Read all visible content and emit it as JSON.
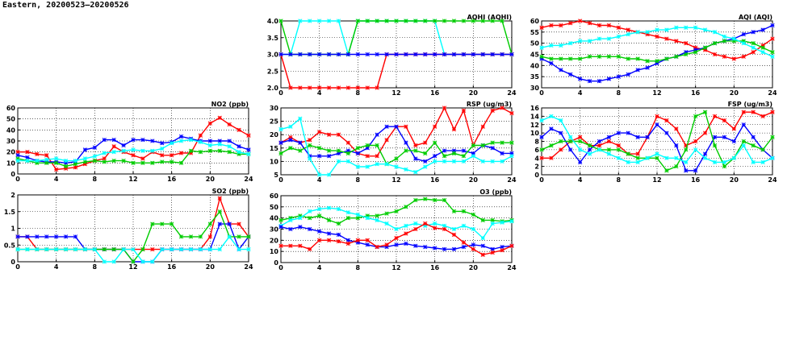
{
  "page": {
    "title": "Eastern, 20200523–20200526"
  },
  "colors": {
    "red": "#ff0000",
    "blue": "#0000ff",
    "green": "#00cc00",
    "cyan": "#00ffff"
  },
  "chart_data": [
    {
      "id": "no2",
      "type": "line",
      "title": "NO2 (ppb)",
      "xlim": [
        0,
        24
      ],
      "ylim": [
        0,
        60
      ],
      "xticks": [
        0,
        4,
        8,
        12,
        16,
        20,
        24
      ],
      "yticks": [
        0,
        10,
        20,
        30,
        40,
        50,
        60
      ],
      "grid": true,
      "x": [
        0,
        1,
        2,
        3,
        4,
        5,
        6,
        7,
        8,
        9,
        10,
        11,
        12,
        13,
        14,
        15,
        16,
        17,
        18,
        19,
        20,
        21,
        22,
        23,
        24
      ],
      "series": [
        {
          "color": "red",
          "values": [
            20,
            20,
            18,
            17,
            4,
            5,
            6,
            9,
            12,
            14,
            25,
            20,
            17,
            14,
            20,
            17,
            17,
            19,
            19,
            35,
            46,
            51,
            45,
            40,
            35
          ]
        },
        {
          "color": "blue",
          "values": [
            17,
            15,
            12,
            11,
            11,
            10,
            11,
            22,
            24,
            31,
            31,
            26,
            31,
            31,
            30,
            28,
            29,
            34,
            32,
            30,
            30,
            30,
            30,
            25,
            22
          ]
        },
        {
          "color": "green",
          "values": [
            14,
            12,
            10,
            10,
            10,
            7,
            9,
            11,
            12,
            11,
            12,
            12,
            10,
            10,
            10,
            11,
            11,
            10,
            21,
            20,
            21,
            21,
            20,
            18,
            18
          ]
        },
        {
          "color": "cyan",
          "values": [
            12,
            12,
            12,
            13,
            14,
            12,
            12,
            14,
            16,
            19,
            20,
            21,
            22,
            21,
            21,
            23,
            28,
            30,
            31,
            29,
            26,
            27,
            25,
            20,
            18
          ]
        }
      ]
    },
    {
      "id": "so2",
      "type": "line",
      "title": "SO2 (ppb)",
      "xlim": [
        0,
        24
      ],
      "ylim": [
        0,
        2
      ],
      "xticks": [
        0,
        4,
        8,
        12,
        16,
        20,
        24
      ],
      "yticks": [
        0,
        0.5,
        1,
        1.5,
        2
      ],
      "grid": true,
      "x": [
        0,
        1,
        2,
        3,
        4,
        5,
        6,
        7,
        8,
        9,
        10,
        11,
        12,
        13,
        14,
        15,
        16,
        17,
        18,
        19,
        20,
        21,
        22,
        23,
        24
      ],
      "series": [
        {
          "color": "red",
          "values": [
            0.75,
            0.75,
            0.37,
            0.37,
            0.37,
            0.37,
            0.37,
            0.37,
            0.37,
            0.37,
            0.37,
            0.37,
            0.37,
            0.37,
            0.37,
            0.37,
            0.37,
            0.37,
            0.37,
            0.37,
            0.75,
            1.9,
            1.13,
            1.13,
            0.75
          ]
        },
        {
          "color": "blue",
          "values": [
            0.75,
            0.75,
            0.75,
            0.75,
            0.75,
            0.75,
            0.75,
            0.37,
            0.37,
            0.37,
            0.37,
            0.37,
            0,
            0,
            0,
            0.37,
            0.37,
            0.37,
            0.37,
            0.37,
            0.37,
            1.13,
            1.13,
            0.37,
            0.75
          ]
        },
        {
          "color": "green",
          "values": [
            0.37,
            0.37,
            0.37,
            0.37,
            0.37,
            0.37,
            0.37,
            0.37,
            0.37,
            0.37,
            0.37,
            0.37,
            0,
            0.37,
            1.13,
            1.13,
            1.13,
            0.75,
            0.75,
            0.75,
            1.13,
            1.5,
            0.75,
            0.75,
            0.75
          ]
        },
        {
          "color": "cyan",
          "values": [
            0.37,
            0.37,
            0.37,
            0.37,
            0.37,
            0.37,
            0.37,
            0.37,
            0.37,
            0,
            0,
            0.37,
            0.37,
            0,
            0,
            0.37,
            0.37,
            0.37,
            0.37,
            0.37,
            0.37,
            0.37,
            0.75,
            0.37,
            0.37
          ]
        }
      ]
    },
    {
      "id": "aqhi",
      "type": "line",
      "title": "AQHI (AQHI)",
      "xlim": [
        0,
        24
      ],
      "ylim": [
        2,
        4
      ],
      "xticks": [
        0,
        4,
        8,
        12,
        16,
        20,
        24
      ],
      "yticks": [
        2,
        2.5,
        3,
        3.5,
        4
      ],
      "ytick_labels": [
        "2.0",
        "2.5",
        "3.0",
        "3.5",
        "4.0"
      ],
      "grid": true,
      "x": [
        0,
        1,
        2,
        3,
        4,
        5,
        6,
        7,
        8,
        9,
        10,
        11,
        12,
        13,
        14,
        15,
        16,
        17,
        18,
        19,
        20,
        21,
        22,
        23,
        24
      ],
      "series": [
        {
          "color": "cyan",
          "values": [
            3,
            3,
            4,
            4,
            4,
            4,
            4,
            3,
            4,
            4,
            4,
            4,
            4,
            4,
            4,
            4,
            4,
            3,
            3,
            3,
            3,
            3,
            3,
            3,
            3
          ]
        },
        {
          "color": "green",
          "values": [
            4,
            3,
            3,
            3,
            3,
            3,
            3,
            3,
            4,
            4,
            4,
            4,
            4,
            4,
            4,
            4,
            4,
            4,
            4,
            4,
            4,
            4,
            4,
            4,
            3
          ]
        },
        {
          "color": "red",
          "values": [
            3,
            2,
            2,
            2,
            2,
            2,
            2,
            2,
            2,
            2,
            2,
            3,
            3,
            3,
            3,
            3,
            3,
            3,
            3,
            3,
            3,
            3,
            3,
            3,
            3
          ]
        },
        {
          "color": "blue",
          "values": [
            3,
            3,
            3,
            3,
            3,
            3,
            3,
            3,
            3,
            3,
            3,
            3,
            3,
            3,
            3,
            3,
            3,
            3,
            3,
            3,
            3,
            3,
            3,
            3,
            3
          ]
        }
      ]
    },
    {
      "id": "rsp",
      "type": "line",
      "title": "RSP (ug/m3)",
      "xlim": [
        0,
        24
      ],
      "ylim": [
        5,
        30
      ],
      "xticks": [
        0,
        4,
        8,
        12,
        16,
        20,
        24
      ],
      "yticks": [
        5,
        10,
        15,
        20,
        25,
        30
      ],
      "grid": true,
      "x": [
        0,
        1,
        2,
        3,
        4,
        5,
        6,
        7,
        8,
        9,
        10,
        11,
        12,
        13,
        14,
        15,
        16,
        17,
        18,
        19,
        20,
        21,
        22,
        23,
        24
      ],
      "series": [
        {
          "color": "red",
          "values": [
            17,
            19,
            17,
            18,
            21,
            20,
            20,
            17,
            13,
            12,
            12,
            18,
            23,
            23,
            16,
            17,
            23,
            30,
            22,
            29,
            16,
            23,
            29,
            30,
            28
          ]
        },
        {
          "color": "blue",
          "values": [
            17,
            18,
            17,
            12,
            12,
            12,
            13,
            14,
            13,
            15,
            20,
            23,
            23,
            17,
            11,
            10,
            12,
            14,
            14,
            14,
            13,
            16,
            15,
            13,
            13
          ]
        },
        {
          "color": "green",
          "values": [
            13,
            15,
            14,
            16,
            15,
            14,
            14,
            13,
            15,
            16,
            16,
            9,
            11,
            14,
            14,
            13,
            17,
            12,
            13,
            12,
            16,
            16,
            17,
            17,
            17
          ]
        },
        {
          "color": "cyan",
          "values": [
            22,
            23,
            26,
            11,
            5,
            5,
            10,
            10,
            8,
            8,
            9,
            9,
            8,
            7,
            6,
            8,
            10,
            10,
            10,
            10,
            12,
            10,
            10,
            10,
            12
          ]
        }
      ]
    },
    {
      "id": "o3",
      "type": "line",
      "title": "O3 (ppb)",
      "xlim": [
        0,
        24
      ],
      "ylim": [
        0,
        60
      ],
      "xticks": [
        0,
        4,
        8,
        12,
        16,
        20,
        24
      ],
      "yticks": [
        0,
        10,
        20,
        30,
        40,
        50,
        60
      ],
      "grid": true,
      "x": [
        0,
        1,
        2,
        3,
        4,
        5,
        6,
        7,
        8,
        9,
        10,
        11,
        12,
        13,
        14,
        15,
        16,
        17,
        18,
        19,
        20,
        21,
        22,
        23,
        24
      ],
      "series": [
        {
          "color": "green",
          "values": [
            38,
            40,
            42,
            40,
            42,
            38,
            35,
            40,
            40,
            42,
            42,
            44,
            46,
            50,
            56,
            57,
            56,
            56,
            46,
            46,
            43,
            38,
            38,
            37,
            38
          ]
        },
        {
          "color": "cyan",
          "values": [
            33,
            38,
            40,
            46,
            48,
            49,
            48,
            45,
            43,
            40,
            38,
            35,
            30,
            33,
            35,
            33,
            35,
            33,
            30,
            33,
            30,
            22,
            35,
            36,
            37
          ]
        },
        {
          "color": "blue",
          "values": [
            32,
            30,
            32,
            30,
            28,
            26,
            25,
            20,
            18,
            16,
            14,
            14,
            16,
            17,
            15,
            14,
            13,
            12,
            12,
            14,
            16,
            15,
            12,
            14,
            15
          ]
        },
        {
          "color": "red",
          "values": [
            15,
            15,
            15,
            12,
            20,
            20,
            19,
            17,
            20,
            20,
            14,
            16,
            22,
            26,
            30,
            35,
            31,
            30,
            25,
            18,
            12,
            7,
            9,
            11,
            15
          ]
        }
      ]
    },
    {
      "id": "aqi",
      "type": "line",
      "title": "AQI (AQI)",
      "xlim": [
        0,
        24
      ],
      "ylim": [
        30,
        60
      ],
      "xticks": [
        0,
        4,
        8,
        12,
        16,
        20,
        24
      ],
      "yticks": [
        30,
        35,
        40,
        45,
        50,
        55,
        60
      ],
      "grid": true,
      "x": [
        0,
        1,
        2,
        3,
        4,
        5,
        6,
        7,
        8,
        9,
        10,
        11,
        12,
        13,
        14,
        15,
        16,
        17,
        18,
        19,
        20,
        21,
        22,
        23,
        24
      ],
      "series": [
        {
          "color": "red",
          "values": [
            57,
            58,
            58,
            59,
            60,
            59,
            58,
            58,
            57,
            56,
            55,
            54,
            53,
            52,
            51,
            50,
            48,
            47,
            45,
            44,
            43,
            44,
            46,
            49,
            52
          ]
        },
        {
          "color": "blue",
          "values": [
            43,
            41,
            38,
            36,
            34,
            33,
            33,
            34,
            35,
            36,
            38,
            39,
            41,
            43,
            44,
            46,
            47,
            48,
            50,
            51,
            52,
            54,
            55,
            56,
            58
          ]
        },
        {
          "color": "green",
          "values": [
            44,
            43,
            43,
            43,
            43,
            44,
            44,
            44,
            44,
            43,
            43,
            42,
            42,
            43,
            44,
            45,
            46,
            48,
            50,
            51,
            51,
            51,
            50,
            48,
            46
          ]
        },
        {
          "color": "cyan",
          "values": [
            48,
            49,
            49,
            50,
            51,
            51,
            52,
            52,
            53,
            54,
            55,
            55,
            56,
            56,
            57,
            57,
            57,
            56,
            55,
            53,
            52,
            50,
            48,
            46,
            44
          ]
        }
      ]
    },
    {
      "id": "fsp",
      "type": "line",
      "title": "FSP (ug/m3)",
      "xlim": [
        0,
        24
      ],
      "ylim": [
        0,
        16
      ],
      "xticks": [
        0,
        4,
        8,
        12,
        16,
        20,
        24
      ],
      "yticks": [
        0,
        2,
        4,
        6,
        8,
        10,
        12,
        14,
        16
      ],
      "grid": true,
      "x": [
        0,
        1,
        2,
        3,
        4,
        5,
        6,
        7,
        8,
        9,
        10,
        11,
        12,
        13,
        14,
        15,
        16,
        17,
        18,
        19,
        20,
        21,
        22,
        23,
        24
      ],
      "series": [
        {
          "color": "red",
          "values": [
            4,
            4,
            6,
            8,
            9,
            7,
            7,
            8,
            7,
            5,
            5,
            9,
            14,
            13,
            11,
            7,
            8,
            10,
            14,
            13,
            11,
            15,
            15,
            14,
            15
          ]
        },
        {
          "color": "blue",
          "values": [
            9,
            11,
            10,
            6,
            3,
            6,
            8,
            9,
            10,
            10,
            9,
            9,
            12,
            10,
            7,
            1,
            1,
            5,
            9,
            9,
            8,
            12,
            9,
            6,
            4
          ]
        },
        {
          "color": "green",
          "values": [
            6,
            7,
            8,
            8,
            8,
            7,
            6,
            6,
            6,
            5,
            4,
            4,
            4,
            1,
            2,
            6,
            14,
            15,
            7,
            2,
            4,
            8,
            7,
            6,
            9
          ]
        },
        {
          "color": "cyan",
          "values": [
            13,
            14,
            13,
            9,
            6,
            5,
            6,
            5,
            4,
            3,
            3,
            4,
            5,
            4,
            4,
            3,
            6,
            4,
            3,
            3,
            4,
            7,
            3,
            3,
            4
          ]
        }
      ]
    }
  ]
}
